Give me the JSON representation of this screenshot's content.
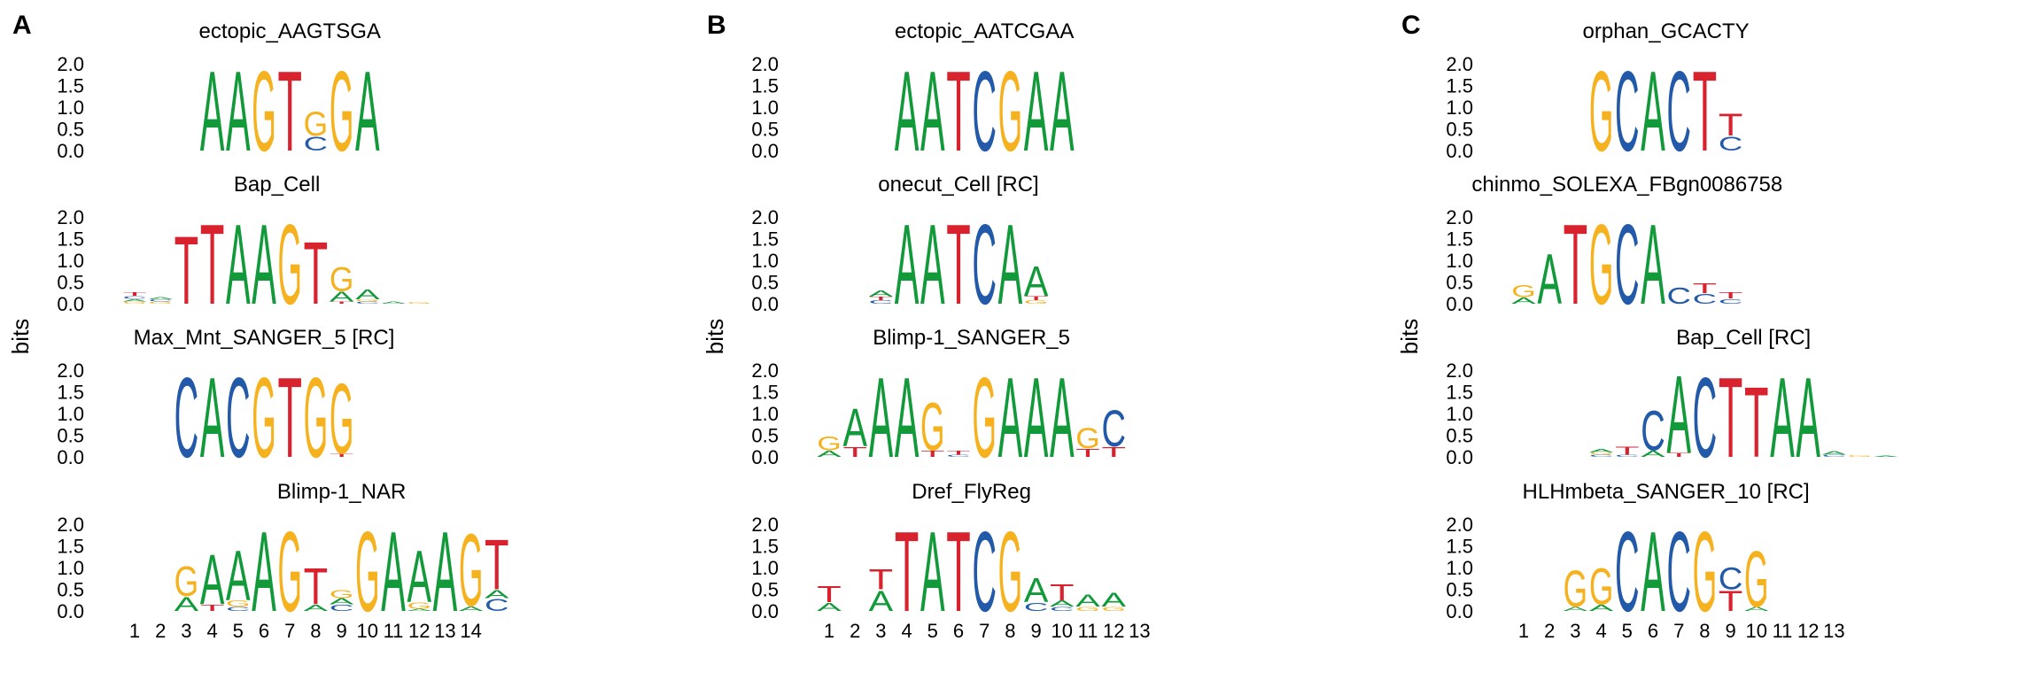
{
  "colors": {
    "A": "#129a3a",
    "C": "#2259a8",
    "G": "#f5b21e",
    "T": "#d8232f"
  },
  "y_axis": {
    "label": "bits",
    "ticks": [
      "0.0",
      "0.5",
      "1.0",
      "1.5",
      "2.0"
    ]
  },
  "panels": [
    {
      "letter": "A",
      "x_ticks": [
        "1",
        "2",
        "3",
        "4",
        "5",
        "6",
        "7",
        "8",
        "9",
        "10",
        "11",
        "12",
        "13",
        "14"
      ],
      "logos": [
        {
          "title": "ectopic_AAGTSGA",
          "offset": 4,
          "columns": [
            [
              [
                "A",
                2.0
              ]
            ],
            [
              [
                "A",
                2.0
              ]
            ],
            [
              [
                "G",
                2.0
              ]
            ],
            [
              [
                "T",
                2.0
              ]
            ],
            [
              [
                "C",
                0.35
              ],
              [
                "G",
                0.6
              ]
            ],
            [
              [
                "G",
                2.0
              ]
            ],
            [
              [
                "A",
                2.0
              ]
            ]
          ]
        },
        {
          "title": "Bap_Cell",
          "offset": 1,
          "columns": [
            [
              [
                "G",
                0.05
              ],
              [
                "A",
                0.06
              ],
              [
                "C",
                0.07
              ],
              [
                "T",
                0.08
              ]
            ],
            [
              [
                "G",
                0.05
              ],
              [
                "C",
                0.05
              ],
              [
                "A",
                0.05
              ]
            ],
            [
              [
                "T",
                1.7
              ]
            ],
            [
              [
                "T",
                2.0
              ]
            ],
            [
              [
                "A",
                2.0
              ]
            ],
            [
              [
                "A",
                2.0
              ]
            ],
            [
              [
                "G",
                2.0
              ]
            ],
            [
              [
                "T",
                1.55
              ]
            ],
            [
              [
                "T",
                0.05
              ],
              [
                "A",
                0.25
              ],
              [
                "G",
                0.6
              ]
            ],
            [
              [
                "C",
                0.05
              ],
              [
                "G",
                0.05
              ],
              [
                "A",
                0.25
              ]
            ],
            [
              [
                "A",
                0.05
              ]
            ],
            [
              [
                "G",
                0.04
              ]
            ]
          ]
        },
        {
          "title": "Max_Mnt_SANGER_5 [RC]",
          "offset": 3,
          "columns": [
            [
              [
                "C",
                2.0
              ]
            ],
            [
              [
                "A",
                2.0
              ]
            ],
            [
              [
                "C",
                2.0
              ]
            ],
            [
              [
                "G",
                2.0
              ]
            ],
            [
              [
                "T",
                2.0
              ]
            ],
            [
              [
                "G",
                2.0
              ]
            ],
            [
              [
                "T",
                0.08
              ],
              [
                "G",
                1.75
              ]
            ]
          ]
        },
        {
          "title": "Blimp-1_NAR",
          "offset": 3,
          "columns": [
            [
              [
                "A",
                0.35
              ],
              [
                "G",
                0.75
              ]
            ],
            [
              [
                "T",
                0.15
              ],
              [
                "A",
                1.25
              ]
            ],
            [
              [
                "C",
                0.1
              ],
              [
                "G",
                0.15
              ],
              [
                "A",
                1.25
              ]
            ],
            [
              [
                "A",
                2.0
              ]
            ],
            [
              [
                "G",
                2.0
              ]
            ],
            [
              [
                "A",
                0.15
              ],
              [
                "T",
                0.9
              ]
            ],
            [
              [
                "C",
                0.15
              ],
              [
                "A",
                0.15
              ],
              [
                "G",
                0.2
              ]
            ],
            [
              [
                "G",
                2.0
              ]
            ],
            [
              [
                "A",
                2.0
              ]
            ],
            [
              [
                "A",
                0.05
              ],
              [
                "G",
                0.15
              ],
              [
                "A",
                1.3
              ]
            ],
            [
              [
                "A",
                2.0
              ]
            ],
            [
              [
                "A",
                0.12
              ],
              [
                "G",
                1.8
              ]
            ],
            [
              [
                "C",
                0.3
              ],
              [
                "A",
                0.2
              ],
              [
                "T",
                1.25
              ]
            ]
          ]
        }
      ]
    },
    {
      "letter": "B",
      "x_ticks": [
        "1",
        "2",
        "3",
        "4",
        "5",
        "6",
        "7",
        "8",
        "9",
        "10",
        "11",
        "12",
        "13"
      ],
      "logos": [
        {
          "title": "ectopic_AATCGAA",
          "offset": 4,
          "columns": [
            [
              [
                "A",
                2.0
              ]
            ],
            [
              [
                "A",
                2.0
              ]
            ],
            [
              [
                "T",
                2.0
              ]
            ],
            [
              [
                "C",
                2.0
              ]
            ],
            [
              [
                "G",
                2.0
              ]
            ],
            [
              [
                "A",
                2.0
              ]
            ],
            [
              [
                "A",
                2.0
              ]
            ]
          ]
        },
        {
          "title": "onecut_Cell [RC]",
          "offset": 3,
          "columns": [
            [
              [
                "C",
                0.08
              ],
              [
                "T",
                0.08
              ],
              [
                "A",
                0.15
              ]
            ],
            [
              [
                "A",
                2.0
              ]
            ],
            [
              [
                "A",
                2.0
              ]
            ],
            [
              [
                "T",
                2.0
              ]
            ],
            [
              [
                "C",
                2.0
              ]
            ],
            [
              [
                "A",
                2.0
              ]
            ],
            [
              [
                "G",
                0.08
              ],
              [
                "T",
                0.1
              ],
              [
                "A",
                0.75
              ]
            ]
          ]
        },
        {
          "title": "Blimp-1_SANGER_5",
          "offset": 1,
          "columns": [
            [
              [
                "A",
                0.15
              ],
              [
                "G",
                0.35
              ]
            ],
            [
              [
                "T",
                0.25
              ],
              [
                "A",
                0.95
              ]
            ],
            [
              [
                "A",
                2.0
              ]
            ],
            [
              [
                "A",
                2.0
              ]
            ],
            [
              [
                "T",
                0.15
              ],
              [
                "G",
                1.2
              ]
            ],
            [
              [
                "C",
                0.05
              ],
              [
                "T",
                0.1
              ]
            ],
            [
              [
                "G",
                2.0
              ]
            ],
            [
              [
                "A",
                2.0
              ]
            ],
            [
              [
                "A",
                2.0
              ]
            ],
            [
              [
                "A",
                2.0
              ]
            ],
            [
              [
                "T",
                0.2
              ],
              [
                "G",
                0.5
              ]
            ],
            [
              [
                "T",
                0.25
              ],
              [
                "C",
                0.9
              ]
            ]
          ]
        },
        {
          "title": "Dref_FlyReg",
          "offset": 1,
          "columns": [
            [
              [
                "A",
                0.2
              ],
              [
                "T",
                0.4
              ]
            ],
            [],
            [
              [
                "A",
                0.5
              ],
              [
                "T",
                0.5
              ]
            ],
            [
              [
                "T",
                2.0
              ]
            ],
            [
              [
                "A",
                2.0
              ]
            ],
            [
              [
                "T",
                2.0
              ]
            ],
            [
              [
                "C",
                2.0
              ]
            ],
            [
              [
                "G",
                2.0
              ]
            ],
            [
              [
                "C",
                0.2
              ],
              [
                "A",
                0.6
              ]
            ],
            [
              [
                "C",
                0.1
              ],
              [
                "A",
                0.15
              ],
              [
                "T",
                0.4
              ]
            ],
            [
              [
                "G",
                0.1
              ],
              [
                "A",
                0.3
              ]
            ],
            [
              [
                "G",
                0.1
              ],
              [
                "A",
                0.35
              ]
            ]
          ]
        }
      ]
    },
    {
      "letter": "C",
      "x_ticks": [
        "1",
        "2",
        "3",
        "4",
        "5",
        "6",
        "7",
        "8",
        "9",
        "10",
        "11",
        "12",
        "13"
      ],
      "logos": [
        {
          "title": "orphan_GCACTY",
          "offset": 4,
          "columns": [
            [
              [
                "G",
                2.0
              ]
            ],
            [
              [
                "C",
                2.0
              ]
            ],
            [
              [
                "A",
                2.0
              ]
            ],
            [
              [
                "C",
                2.0
              ]
            ],
            [
              [
                "T",
                2.0
              ]
            ],
            [
              [
                "C",
                0.35
              ],
              [
                "T",
                0.55
              ]
            ]
          ]
        },
        {
          "title": "chinmo_SOLEXA_FBgn0086758",
          "offset": 1,
          "columns": [
            [
              [
                "A",
                0.15
              ],
              [
                "G",
                0.3
              ]
            ],
            [
              [
                "A",
                1.25
              ]
            ],
            [
              [
                "T",
                2.0
              ]
            ],
            [
              [
                "G",
                2.0
              ]
            ],
            [
              [
                "C",
                2.0
              ]
            ],
            [
              [
                "A",
                2.0
              ]
            ],
            [
              [
                "C",
                0.4
              ]
            ],
            [
              [
                "C",
                0.25
              ],
              [
                "T",
                0.25
              ]
            ],
            [
              [
                "C",
                0.12
              ],
              [
                "T",
                0.15
              ]
            ]
          ]
        },
        {
          "title": "Bap_Cell [RC]",
          "offset": 4,
          "columns": [
            [
              [
                "C",
                0.05
              ],
              [
                "G",
                0.05
              ],
              [
                "A",
                0.08
              ]
            ],
            [
              [
                "C",
                0.05
              ],
              [
                "T",
                0.2
              ]
            ],
            [
              [
                "A",
                0.15
              ],
              [
                "C",
                1.0
              ]
            ],
            [
              [
                "T",
                0.1
              ],
              [
                "A",
                1.95
              ]
            ],
            [
              [
                "C",
                2.0
              ]
            ],
            [
              [
                "T",
                2.0
              ]
            ],
            [
              [
                "T",
                1.75
              ]
            ],
            [
              [
                "A",
                2.0
              ]
            ],
            [
              [
                "A",
                2.0
              ]
            ],
            [
              [
                "C",
                0.05
              ],
              [
                "A",
                0.08
              ]
            ],
            [
              [
                "G",
                0.04
              ]
            ],
            [
              [
                "A",
                0.03
              ]
            ]
          ]
        },
        {
          "title": "HLHmbeta_SANGER_10 [RC]",
          "offset": 3,
          "columns": [
            [
              [
                "A",
                0.1
              ],
              [
                "G",
                0.9
              ]
            ],
            [
              [
                "A",
                0.15
              ],
              [
                "G",
                0.9
              ]
            ],
            [
              [
                "C",
                2.0
              ]
            ],
            [
              [
                "A",
                2.0
              ]
            ],
            [
              [
                "C",
                2.0
              ]
            ],
            [
              [
                "G",
                2.0
              ]
            ],
            [
              [
                "T",
                0.5
              ],
              [
                "C",
                0.55
              ]
            ],
            [
              [
                "A",
                0.1
              ],
              [
                "G",
                1.4
              ]
            ]
          ]
        }
      ]
    }
  ]
}
